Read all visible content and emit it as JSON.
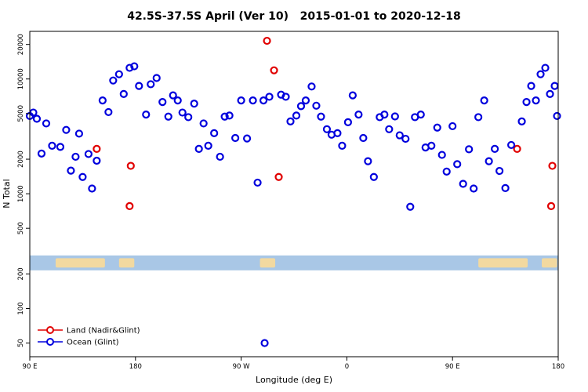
{
  "title": "42.5S-37.5S April (Ver 10)   2015-01-01 to 2020-12-18",
  "chart_data": {
    "type": "scatter",
    "xlabel": "Longitude (deg E)",
    "ylabel": "N Total",
    "y_scale": "log",
    "x_range": [
      90,
      540
    ],
    "y_range": [
      38,
      26000
    ],
    "x_ticks": [
      {
        "value": 90,
        "label": "90 E"
      },
      {
        "value": 180,
        "label": "180"
      },
      {
        "value": 270,
        "label": "90 W"
      },
      {
        "value": 360,
        "label": "0"
      },
      {
        "value": 450,
        "label": "90 E"
      },
      {
        "value": 540,
        "label": "180"
      }
    ],
    "y_ticks": [
      50,
      100,
      200,
      500,
      1000,
      2000,
      5000,
      10000,
      20000
    ],
    "series": [
      {
        "name": "Land (Nadir&Glint)",
        "color": "#e10000",
        "marker": "open-circle",
        "points": [
          [
            147,
            2460
          ],
          [
            175,
            780
          ],
          [
            176,
            1750
          ],
          [
            292,
            21500
          ],
          [
            298,
            11900
          ],
          [
            302,
            1400
          ],
          [
            505,
            2460
          ],
          [
            534,
            780
          ],
          [
            535,
            1750
          ]
        ]
      },
      {
        "name": "Ocean (Glint)",
        "color": "#0000dd",
        "marker": "open-circle",
        "points": [
          [
            90,
            4760
          ],
          [
            93,
            5100
          ],
          [
            96,
            4500
          ],
          [
            100,
            2240
          ],
          [
            104,
            4100
          ],
          [
            109,
            2620
          ],
          [
            116,
            2560
          ],
          [
            121,
            3600
          ],
          [
            125,
            1590
          ],
          [
            129,
            2100
          ],
          [
            132,
            3340
          ],
          [
            135,
            1400
          ],
          [
            140,
            2220
          ],
          [
            143,
            1110
          ],
          [
            147,
            1940
          ],
          [
            152,
            6500
          ],
          [
            157,
            5150
          ],
          [
            161,
            9700
          ],
          [
            166,
            11000
          ],
          [
            170,
            7400
          ],
          [
            175,
            12500
          ],
          [
            179,
            12900
          ],
          [
            183,
            8700
          ],
          [
            189,
            4900
          ],
          [
            193,
            9000
          ],
          [
            198,
            10200
          ],
          [
            203,
            6300
          ],
          [
            208,
            4700
          ],
          [
            212,
            7200
          ],
          [
            216,
            6500
          ],
          [
            220,
            5100
          ],
          [
            225,
            4650
          ],
          [
            230,
            6100
          ],
          [
            234,
            2460
          ],
          [
            238,
            4100
          ],
          [
            242,
            2620
          ],
          [
            247,
            3370
          ],
          [
            252,
            2100
          ],
          [
            256,
            4700
          ],
          [
            260,
            4800
          ],
          [
            265,
            3060
          ],
          [
            270,
            6500
          ],
          [
            275,
            3030
          ],
          [
            280,
            6500
          ],
          [
            284,
            1250
          ],
          [
            289,
            6500
          ],
          [
            294,
            7000
          ],
          [
            290,
            50
          ],
          [
            304,
            7300
          ],
          [
            308,
            7000
          ],
          [
            312,
            4270
          ],
          [
            317,
            4800
          ],
          [
            321,
            5800
          ],
          [
            325,
            6500
          ],
          [
            330,
            8600
          ],
          [
            334,
            5850
          ],
          [
            338,
            4700
          ],
          [
            343,
            3650
          ],
          [
            347,
            3270
          ],
          [
            352,
            3370
          ],
          [
            356,
            2620
          ],
          [
            361,
            4200
          ],
          [
            365,
            7200
          ],
          [
            370,
            4900
          ],
          [
            374,
            3060
          ],
          [
            378,
            1920
          ],
          [
            383,
            1400
          ],
          [
            388,
            4650
          ],
          [
            392,
            4900
          ],
          [
            396,
            3650
          ],
          [
            401,
            4720
          ],
          [
            405,
            3230
          ],
          [
            410,
            3010
          ],
          [
            414,
            770
          ],
          [
            418,
            4650
          ],
          [
            423,
            4900
          ],
          [
            427,
            2530
          ],
          [
            432,
            2620
          ],
          [
            437,
            3770
          ],
          [
            441,
            2180
          ],
          [
            445,
            1560
          ],
          [
            450,
            3880
          ],
          [
            454,
            1810
          ],
          [
            459,
            1220
          ],
          [
            464,
            2440
          ],
          [
            468,
            1110
          ],
          [
            472,
            4650
          ],
          [
            477,
            6500
          ],
          [
            481,
            1920
          ],
          [
            486,
            2460
          ],
          [
            490,
            1580
          ],
          [
            495,
            1120
          ],
          [
            500,
            2660
          ],
          [
            509,
            4270
          ],
          [
            513,
            6300
          ],
          [
            517,
            8700
          ],
          [
            521,
            6500
          ],
          [
            525,
            11000
          ],
          [
            529,
            12500
          ],
          [
            533,
            7400
          ],
          [
            537,
            8700
          ],
          [
            539,
            4760
          ]
        ]
      }
    ],
    "map_band": {
      "y_range": [
        215,
        290
      ],
      "ocean_color": "#a9c7e6",
      "land_color": "#f2d9a0",
      "land_segments": [
        [
          112,
          154
        ],
        [
          166,
          179
        ],
        [
          286,
          299
        ],
        [
          472,
          514
        ],
        [
          526,
          539
        ]
      ]
    },
    "legend": {
      "position": "bottom-left",
      "entries": [
        {
          "label": "Land (Nadir&Glint)",
          "color": "#e10000"
        },
        {
          "label": "Ocean (Glint)",
          "color": "#0000dd"
        }
      ]
    }
  }
}
